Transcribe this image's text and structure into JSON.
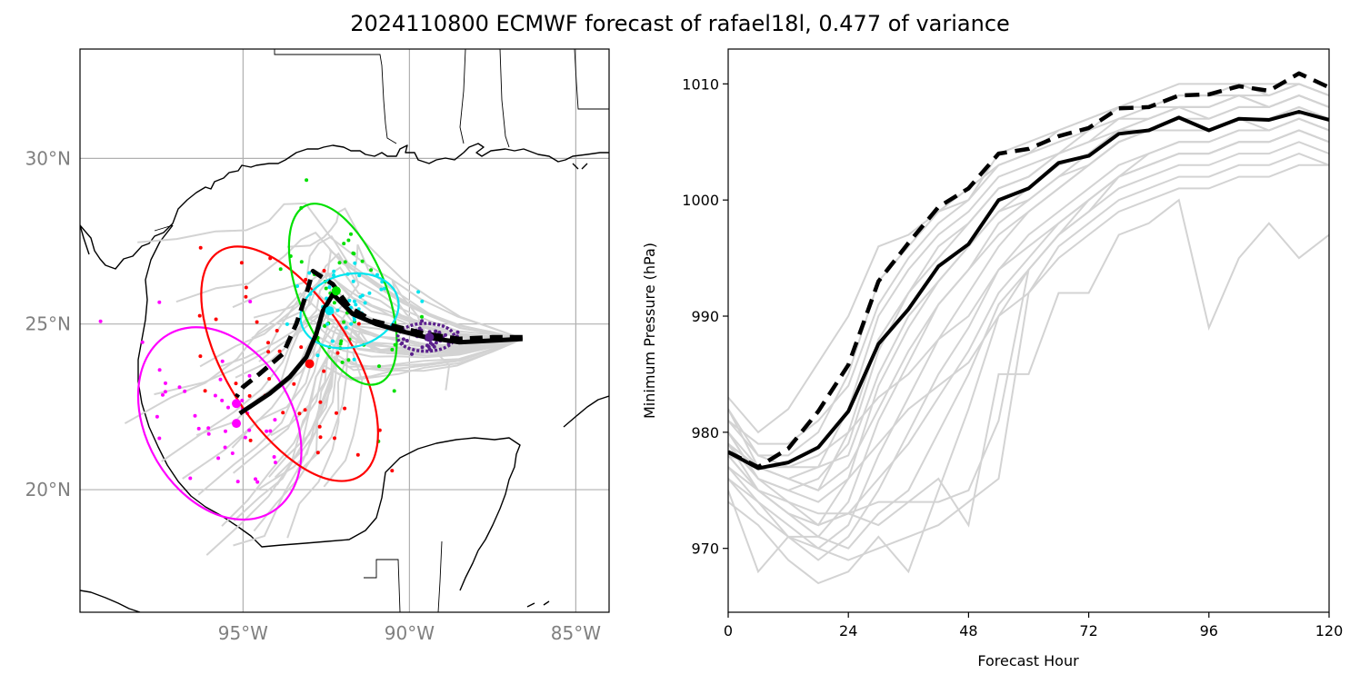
{
  "title": "2024110800 ECMWF forecast of rafael18l, 0.477 of variance",
  "colors": {
    "member": "#d3d3d3",
    "mean": "#000000",
    "ellipses": [
      "#ff00ff",
      "#ff0000",
      "#00e000",
      "#00e5ee",
      "#5a1f8c"
    ]
  },
  "chart_data": [
    {
      "type": "map",
      "panel": "track",
      "lon_range": [
        -99.9,
        -84.0
      ],
      "lat_range": [
        16.3,
        33.3
      ],
      "lon_ticks": [
        {
          "value": -95,
          "label": "95°W"
        },
        {
          "value": -90,
          "label": "90°W"
        },
        {
          "value": -85,
          "label": "85°W"
        }
      ],
      "lat_ticks": [
        {
          "value": 30,
          "label": "30°N"
        },
        {
          "value": 25,
          "label": "25°N"
        },
        {
          "value": 20,
          "label": "20°N"
        }
      ],
      "grid": true,
      "mean_track_solid": [
        [
          -86.6,
          24.55
        ],
        [
          -87.5,
          24.5
        ],
        [
          -88.5,
          24.45
        ],
        [
          -89.5,
          24.6
        ],
        [
          -90.3,
          24.8
        ],
        [
          -91.0,
          25.0
        ],
        [
          -91.7,
          25.3
        ],
        [
          -92.3,
          25.9
        ],
        [
          -92.6,
          25.4
        ],
        [
          -92.8,
          24.7
        ],
        [
          -93.1,
          24.0
        ],
        [
          -93.6,
          23.4
        ],
        [
          -94.2,
          22.9
        ],
        [
          -95.1,
          22.3
        ]
      ],
      "mean_track_dashed": [
        [
          -86.6,
          24.6
        ],
        [
          -87.5,
          24.6
        ],
        [
          -88.5,
          24.55
        ],
        [
          -89.5,
          24.7
        ],
        [
          -90.3,
          24.9
        ],
        [
          -91.1,
          25.1
        ],
        [
          -91.8,
          25.5
        ],
        [
          -92.3,
          26.2
        ],
        [
          -92.9,
          26.6
        ],
        [
          -93.1,
          25.9
        ],
        [
          -93.4,
          25.0
        ],
        [
          -93.8,
          24.1
        ],
        [
          -94.5,
          23.5
        ],
        [
          -95.0,
          23.1
        ],
        [
          -95.2,
          22.8
        ]
      ],
      "ellipses": [
        {
          "center": [
            -95.7,
            22.0
          ],
          "half_widths": [
            2.2,
            3.1
          ],
          "angle_deg": -30,
          "color": "#ff00ff"
        },
        {
          "center": [
            -93.6,
            23.8
          ],
          "half_widths": [
            1.9,
            4.0
          ],
          "angle_deg": -32,
          "color": "#ff0000"
        },
        {
          "center": [
            -92.0,
            25.9
          ],
          "half_widths": [
            1.3,
            2.9
          ],
          "angle_deg": -22,
          "color": "#00e000"
        },
        {
          "center": [
            -91.8,
            25.4
          ],
          "half_widths": [
            1.5,
            1.1
          ],
          "angle_deg": -15,
          "color": "#00e5ee"
        },
        {
          "center": [
            -89.5,
            24.6
          ],
          "half_widths": [
            0.85,
            0.42
          ],
          "angle_deg": 0,
          "color": "#5a1f8c"
        }
      ],
      "center_points": [
        {
          "lon": -95.2,
          "lat": 22.6,
          "color": "#ff00ff"
        },
        {
          "lon": -95.2,
          "lat": 22.0,
          "color": "#ff00ff"
        },
        {
          "lon": -93.0,
          "lat": 23.8,
          "color": "#ff0000"
        },
        {
          "lon": -92.2,
          "lat": 26.0,
          "color": "#00e000"
        },
        {
          "lon": -92.4,
          "lat": 25.4,
          "color": "#00e5ee"
        },
        {
          "lon": -89.4,
          "lat": 24.6,
          "color": "#5a1f8c"
        }
      ]
    },
    {
      "type": "line",
      "panel": "pressure",
      "xlabel": "Forecast Hour",
      "ylabel": "Minimum Pressure (hPa)",
      "xlim": [
        0,
        120
      ],
      "ylim": [
        964.5,
        1013
      ],
      "xticks": [
        0,
        24,
        48,
        72,
        96,
        120
      ],
      "yticks": [
        970,
        980,
        990,
        1000,
        1010
      ],
      "x": [
        0,
        6,
        12,
        18,
        24,
        30,
        36,
        42,
        48,
        54,
        60,
        66,
        72,
        78,
        84,
        90,
        96,
        102,
        108,
        114,
        120
      ],
      "mean_solid": [
        978.3,
        976.9,
        977.4,
        978.7,
        981.8,
        987.6,
        990.6,
        994.3,
        996.2,
        1000.0,
        1001.0,
        1003.2,
        1003.8,
        1005.7,
        1006.0,
        1007.1,
        1006.0,
        1007.0,
        1006.9,
        1007.6,
        1006.9
      ],
      "mean_dashed": [
        978.3,
        977.0,
        978.6,
        981.8,
        985.8,
        993.0,
        996.3,
        999.4,
        1001.0,
        1004.0,
        1004.4,
        1005.5,
        1006.2,
        1007.9,
        1008.0,
        1009.0,
        1009.1,
        1009.8,
        1009.4,
        1010.9,
        1009.7
      ],
      "members": [
        [
          982,
          977,
          976,
          975,
          980,
          988,
          992,
          995,
          998,
          1001,
          1002,
          1004,
          1005,
          1006,
          1007,
          1008,
          1007,
          1008,
          1008,
          1009,
          1008
        ],
        [
          980,
          976,
          974,
          972,
          976,
          984,
          989,
          993,
          996,
          999,
          1001,
          1003,
          1004,
          1006,
          1006,
          1007,
          1006,
          1007,
          1007,
          1008,
          1007
        ],
        [
          978,
          975,
          973,
          971,
          974,
          981,
          986,
          991,
          994,
          998,
          1000,
          1002,
          1003,
          1005,
          1006,
          1007,
          1006,
          1007,
          1007,
          1008,
          1007
        ],
        [
          976,
          974,
          972,
          970,
          972,
          978,
          983,
          988,
          992,
          996,
          999,
          1001,
          1003,
          1005,
          1006,
          1006,
          1006,
          1007,
          1006,
          1007,
          1006
        ],
        [
          979,
          977,
          976,
          977,
          982,
          990,
          994,
          997,
          999,
          1002,
          1003,
          1004,
          1006,
          1007,
          1008,
          1008,
          1008,
          1009,
          1008,
          1009,
          1008
        ],
        [
          981,
          978,
          978,
          980,
          985,
          993,
          996,
          999,
          1001,
          1003,
          1004,
          1006,
          1007,
          1008,
          1008,
          1009,
          1009,
          1009,
          1009,
          1010,
          1009
        ],
        [
          983,
          980,
          982,
          986,
          990,
          996,
          997,
          999,
          1000,
          1004,
          1005,
          1006,
          1007,
          1008,
          1009,
          1010,
          1010,
          1010,
          1009,
          1010,
          1009
        ],
        [
          977,
          974,
          971,
          969,
          971,
          975,
          980,
          985,
          989,
          994,
          997,
          999,
          1001,
          1003,
          1004,
          1005,
          1005,
          1006,
          1006,
          1007,
          1006
        ],
        [
          975,
          968,
          971,
          971,
          970,
          973,
          975,
          980,
          985,
          991,
          994,
          997,
          999,
          1002,
          1003,
          1004,
          1004,
          1005,
          1005,
          1006,
          1005
        ],
        [
          974,
          972,
          969,
          967,
          968,
          971,
          968,
          975,
          982,
          990,
          994,
          997,
          1000,
          1002,
          1003,
          1004,
          1004,
          1005,
          1005,
          1006,
          1005
        ],
        [
          979,
          976,
          975,
          974,
          976,
          979,
          982,
          984,
          986,
          990,
          992,
          995,
          997,
          999,
          1000,
          1001,
          1001,
          1002,
          1002,
          1003,
          1003
        ],
        [
          980,
          977,
          977,
          978,
          980,
          983,
          985,
          988,
          990,
          994,
          996,
          998,
          1000,
          1002,
          1003,
          1004,
          1004,
          1005,
          1005,
          1006,
          1005
        ],
        [
          977,
          975,
          973,
          972,
          973,
          974,
          974,
          976,
          972,
          985,
          985,
          992,
          992,
          997,
          998,
          1000,
          989,
          995,
          998,
          995,
          997
        ],
        [
          978,
          975,
          974,
          973,
          973,
          972,
          974,
          974,
          975,
          981,
          994,
          997,
          999,
          1001,
          1002,
          1003,
          1003,
          1004,
          1004,
          1005,
          1004
        ],
        [
          976,
          973,
          971,
          970,
          969,
          970,
          971,
          972,
          974,
          976,
          992,
          996,
          998,
          1000,
          1001,
          1002,
          1002,
          1003,
          1003,
          1004,
          1003
        ],
        [
          982,
          978,
          977,
          977,
          978,
          985,
          990,
          993,
          996,
          999,
          1000,
          1002,
          1004,
          1006,
          1007,
          1008,
          1008,
          1009,
          1008,
          1009,
          1008
        ],
        [
          980,
          976,
          975,
          976,
          979,
          987,
          992,
          996,
          998,
          1001,
          1002,
          1004,
          1005,
          1007,
          1007,
          1008,
          1008,
          1009,
          1008,
          1009,
          1008
        ],
        [
          978,
          977,
          976,
          975,
          977,
          982,
          987,
          991,
          994,
          997,
          999,
          1001,
          1003,
          1005,
          1006,
          1007,
          1007,
          1008,
          1008,
          1009,
          1008
        ],
        [
          979,
          975,
          973,
          972,
          973,
          976,
          979,
          983,
          987,
          992,
          995,
          998,
          1000,
          1002,
          1004,
          1005,
          1005,
          1006,
          1006,
          1007,
          1006
        ],
        [
          981,
          979,
          979,
          981,
          984,
          991,
          995,
          998,
          1000,
          1003,
          1004,
          1005,
          1006,
          1008,
          1008,
          1009,
          1009,
          1010,
          1010,
          1010,
          1009
        ]
      ]
    }
  ]
}
